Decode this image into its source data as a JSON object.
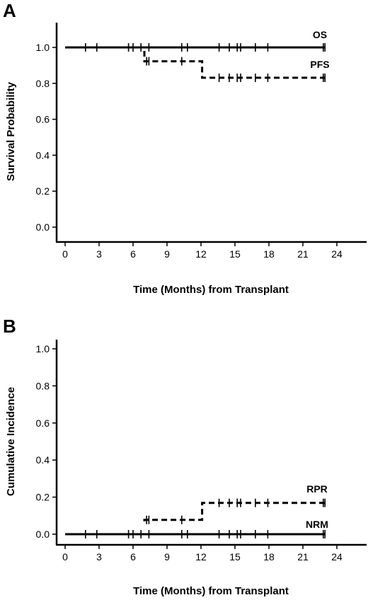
{
  "chart_data": [
    {
      "panel": "A",
      "type": "line",
      "step": true,
      "xlabel": "Time (Months) from Transplant",
      "ylabel": "Survival Probability",
      "xlim": [
        0,
        24
      ],
      "ylim": [
        0,
        1.0
      ],
      "xticks": [
        "0",
        "3",
        "6",
        "9",
        "12",
        "15",
        "18",
        "21",
        "24"
      ],
      "yticks": [
        "0.0",
        "0.2",
        "0.4",
        "0.6",
        "0.8",
        "1.0"
      ],
      "grid": false,
      "series": [
        {
          "name": "OS",
          "style": "solid",
          "x": [
            0,
            23
          ],
          "y": [
            1.0,
            1.0
          ],
          "censor_x": [
            1.8,
            2.8,
            5.6,
            6.0,
            6.7,
            7.4,
            10.3,
            10.8,
            13.6,
            14.5,
            15.2,
            15.5,
            16.8,
            17.9,
            22.8,
            22.95
          ],
          "censor_y": [
            1.0,
            1.0,
            1.0,
            1.0,
            1.0,
            1.0,
            1.0,
            1.0,
            1.0,
            1.0,
            1.0,
            1.0,
            1.0,
            1.0,
            1.0,
            1.0
          ]
        },
        {
          "name": "PFS",
          "style": "dashed",
          "x": [
            0,
            7.0,
            7.0,
            12.1,
            12.1,
            23
          ],
          "y": [
            1.0,
            1.0,
            0.923,
            0.923,
            0.831,
            0.831
          ],
          "censor_x": [
            7.2,
            7.4,
            10.3,
            13.6,
            14.5,
            15.2,
            15.5,
            16.8,
            17.9,
            22.8,
            22.95
          ],
          "censor_y": [
            0.923,
            0.923,
            0.923,
            0.831,
            0.831,
            0.831,
            0.831,
            0.831,
            0.831,
            0.831,
            0.831
          ]
        }
      ]
    },
    {
      "panel": "B",
      "type": "line",
      "step": true,
      "xlabel": "Time (Months) from Transplant",
      "ylabel": "Cumulative Incidence",
      "xlim": [
        0,
        24
      ],
      "ylim": [
        0,
        1.0
      ],
      "xticks": [
        "0",
        "3",
        "6",
        "9",
        "12",
        "15",
        "18",
        "21",
        "24"
      ],
      "yticks": [
        "0.0",
        "0.2",
        "0.4",
        "0.6",
        "0.8",
        "1.0"
      ],
      "grid": false,
      "series": [
        {
          "name": "RPR",
          "style": "dashed",
          "x": [
            7.0,
            7.0,
            12.1,
            12.1,
            23
          ],
          "y": [
            0.07,
            0.077,
            0.077,
            0.169,
            0.169
          ],
          "censor_x": [
            7.2,
            7.4,
            10.3,
            13.6,
            14.5,
            15.2,
            15.5,
            16.8,
            17.9,
            22.8,
            22.95
          ],
          "censor_y": [
            0.077,
            0.077,
            0.077,
            0.169,
            0.169,
            0.169,
            0.169,
            0.169,
            0.169,
            0.169,
            0.169
          ]
        },
        {
          "name": "NRM",
          "style": "solid",
          "x": [
            0,
            23
          ],
          "y": [
            0.0,
            0.0
          ],
          "censor_x": [
            1.8,
            2.8,
            5.6,
            6.0,
            6.7,
            7.4,
            10.3,
            10.8,
            13.6,
            14.5,
            15.2,
            15.5,
            16.8,
            17.9,
            22.8,
            22.95
          ],
          "censor_y": [
            0,
            0,
            0,
            0,
            0,
            0,
            0,
            0,
            0,
            0,
            0,
            0,
            0,
            0,
            0,
            0
          ]
        }
      ]
    }
  ]
}
